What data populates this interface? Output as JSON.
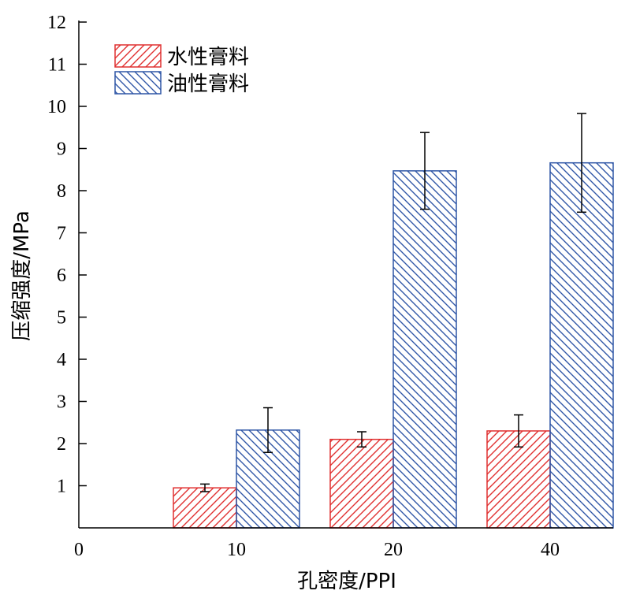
{
  "chart_data": {
    "type": "bar",
    "categories": [
      "10",
      "20",
      "40"
    ],
    "x_origin_label": "0",
    "xlabel": "孔密度/PPI",
    "ylabel": "压缩强度/MPa",
    "ylim": [
      0,
      12
    ],
    "yticks": [
      1,
      2,
      3,
      4,
      5,
      6,
      7,
      8,
      9,
      10,
      11,
      12
    ],
    "grid": false,
    "legend_position": "top-left",
    "series": [
      {
        "name": "水性膏料",
        "values": [
          0.95,
          2.1,
          2.3
        ],
        "errors": [
          0.09,
          0.18,
          0.38
        ],
        "color": "#e03030",
        "hatch": "forward-diagonal"
      },
      {
        "name": "油性膏料",
        "values": [
          2.32,
          8.47,
          8.66
        ],
        "errors": [
          0.53,
          0.91,
          1.17
        ],
        "color": "#2f56a6",
        "hatch": "back-diagonal"
      }
    ]
  }
}
